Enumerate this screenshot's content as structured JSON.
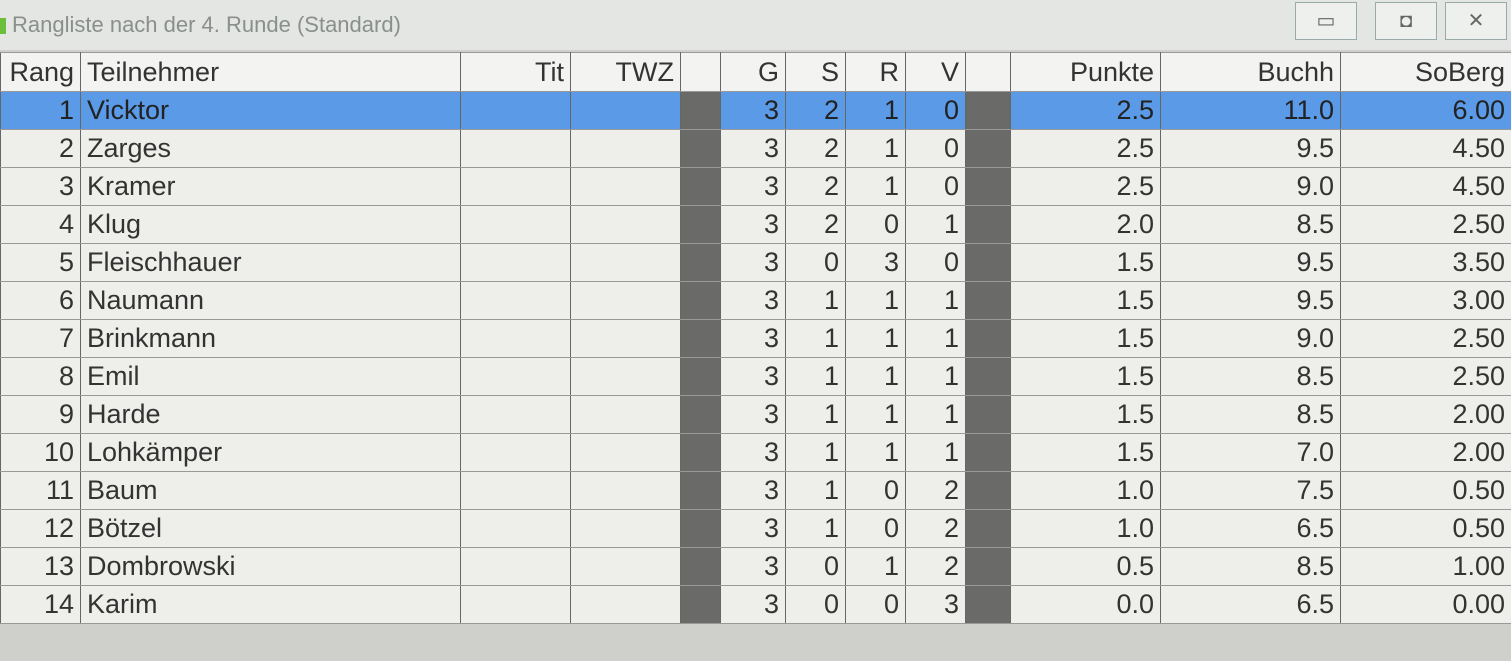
{
  "window": {
    "title": "Rangliste nach der 4. Runde (Standard)",
    "minimize": "▭",
    "maximize": "◘",
    "close": "✕"
  },
  "columns": {
    "rang": "Rang",
    "teilnehmer": "Teilnehmer",
    "tit": "Tit",
    "twz": "TWZ",
    "g": "G",
    "s": "S",
    "r": "R",
    "v": "V",
    "punkte": "Punkte",
    "buchh": "Buchh",
    "soberg": "SoBerg"
  },
  "rows": [
    {
      "rang": "1",
      "name": "Vicktor",
      "g": "3",
      "s": "2",
      "r": "1",
      "v": "0",
      "punkte": "2.5",
      "buchh": "11.0",
      "soberg": "6.00"
    },
    {
      "rang": "2",
      "name": "Zarges",
      "g": "3",
      "s": "2",
      "r": "1",
      "v": "0",
      "punkte": "2.5",
      "buchh": "9.5",
      "soberg": "4.50"
    },
    {
      "rang": "3",
      "name": "Kramer",
      "g": "3",
      "s": "2",
      "r": "1",
      "v": "0",
      "punkte": "2.5",
      "buchh": "9.0",
      "soberg": "4.50"
    },
    {
      "rang": "4",
      "name": "Klug",
      "g": "3",
      "s": "2",
      "r": "0",
      "v": "1",
      "punkte": "2.0",
      "buchh": "8.5",
      "soberg": "2.50"
    },
    {
      "rang": "5",
      "name": "Fleischhauer",
      "g": "3",
      "s": "0",
      "r": "3",
      "v": "0",
      "punkte": "1.5",
      "buchh": "9.5",
      "soberg": "3.50"
    },
    {
      "rang": "6",
      "name": "Naumann",
      "g": "3",
      "s": "1",
      "r": "1",
      "v": "1",
      "punkte": "1.5",
      "buchh": "9.5",
      "soberg": "3.00"
    },
    {
      "rang": "7",
      "name": "Brinkmann",
      "g": "3",
      "s": "1",
      "r": "1",
      "v": "1",
      "punkte": "1.5",
      "buchh": "9.0",
      "soberg": "2.50"
    },
    {
      "rang": "8",
      "name": "Emil",
      "g": "3",
      "s": "1",
      "r": "1",
      "v": "1",
      "punkte": "1.5",
      "buchh": "8.5",
      "soberg": "2.50"
    },
    {
      "rang": "9",
      "name": "Harde",
      "g": "3",
      "s": "1",
      "r": "1",
      "v": "1",
      "punkte": "1.5",
      "buchh": "8.5",
      "soberg": "2.00"
    },
    {
      "rang": "10",
      "name": "Lohkämper",
      "g": "3",
      "s": "1",
      "r": "1",
      "v": "1",
      "punkte": "1.5",
      "buchh": "7.0",
      "soberg": "2.00"
    },
    {
      "rang": "11",
      "name": "Baum",
      "g": "3",
      "s": "1",
      "r": "0",
      "v": "2",
      "punkte": "1.0",
      "buchh": "7.5",
      "soberg": "0.50"
    },
    {
      "rang": "12",
      "name": "Bötzel",
      "g": "3",
      "s": "1",
      "r": "0",
      "v": "2",
      "punkte": "1.0",
      "buchh": "6.5",
      "soberg": "0.50"
    },
    {
      "rang": "13",
      "name": "Dombrowski",
      "g": "3",
      "s": "0",
      "r": "1",
      "v": "2",
      "punkte": "0.5",
      "buchh": "8.5",
      "soberg": "1.00"
    },
    {
      "rang": "14",
      "name": "Karim",
      "g": "3",
      "s": "0",
      "r": "0",
      "v": "3",
      "punkte": "0.0",
      "buchh": "6.5",
      "soberg": "0.00"
    }
  ]
}
